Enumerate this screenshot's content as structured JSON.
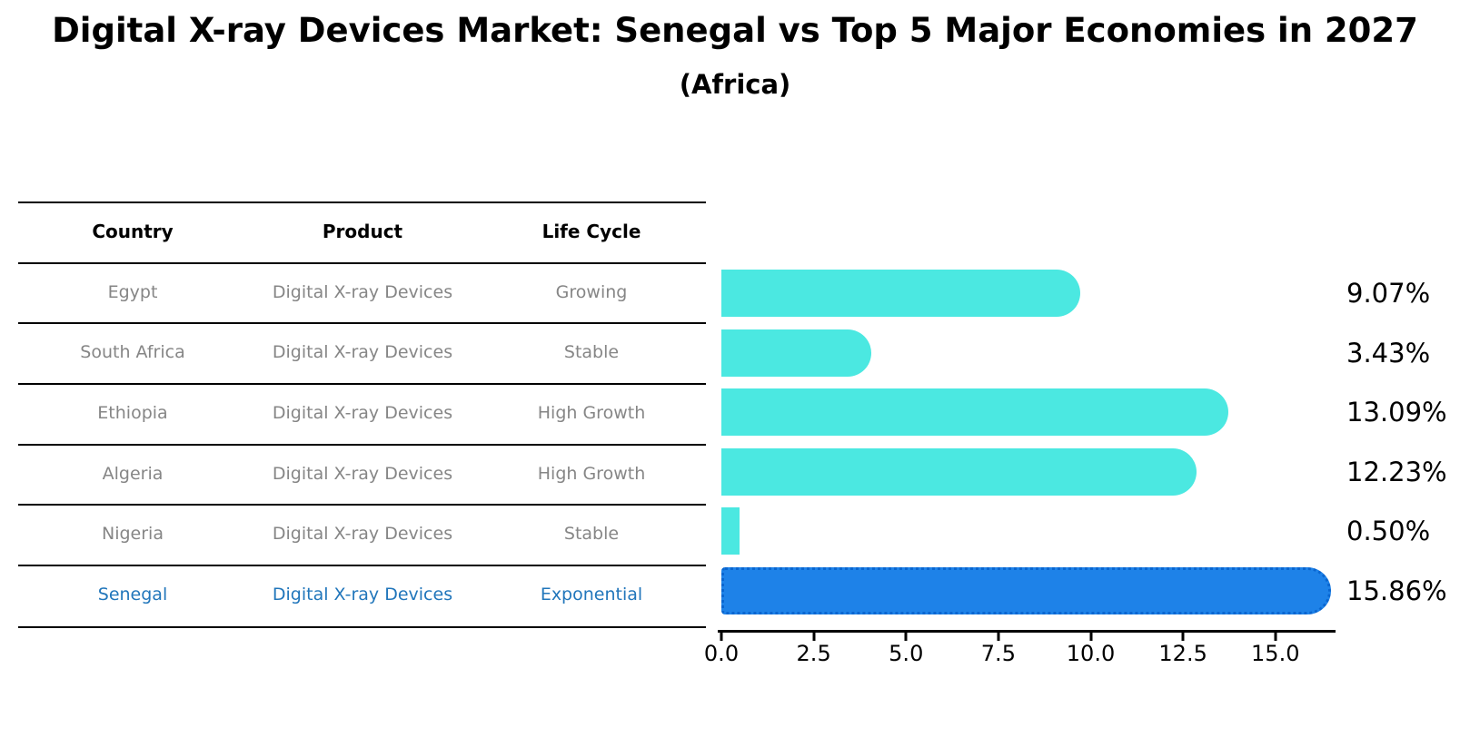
{
  "title": "Digital X-ray Devices Market: Senegal vs Top 5 Major Economies in 2027",
  "subtitle": "(Africa)",
  "table": {
    "headers": [
      "Country",
      "Product",
      "Life Cycle"
    ],
    "rows": [
      {
        "country": "Egypt",
        "product": "Digital X-ray Devices",
        "life_cycle": "Growing",
        "highlight": false
      },
      {
        "country": "South Africa",
        "product": "Digital X-ray Devices",
        "life_cycle": "Stable",
        "highlight": false
      },
      {
        "country": "Ethiopia",
        "product": "Digital X-ray Devices",
        "life_cycle": "High Growth",
        "highlight": false
      },
      {
        "country": "Algeria",
        "product": "Digital X-ray Devices",
        "life_cycle": "High Growth",
        "highlight": false
      },
      {
        "country": "Nigeria",
        "product": "Digital X-ray Devices",
        "life_cycle": "Stable",
        "highlight": false
      },
      {
        "country": "Senegal",
        "product": "Digital X-ray Devices",
        "life_cycle": "Exponential",
        "highlight": true
      }
    ]
  },
  "chart_data": {
    "type": "bar",
    "orientation": "horizontal",
    "title": "Digital X-ray Devices Market: Senegal vs Top 5 Major Economies in 2027",
    "subtitle": "(Africa)",
    "categories": [
      "Egypt",
      "South Africa",
      "Ethiopia",
      "Algeria",
      "Nigeria",
      "Senegal"
    ],
    "values": [
      9.07,
      3.43,
      13.09,
      12.23,
      0.5,
      15.86
    ],
    "value_labels": [
      "9.07%",
      "3.43%",
      "13.09%",
      "12.23%",
      "0.50%",
      "15.86%"
    ],
    "highlight_index": 5,
    "xlabel": "",
    "ylabel": "",
    "xlim": [
      0.0,
      16.65
    ],
    "x_ticks": [
      0.0,
      2.5,
      5.0,
      7.5,
      10.0,
      12.5,
      15.0
    ],
    "x_tick_labels": [
      "0.0",
      "2.5",
      "5.0",
      "7.5",
      "10.0",
      "12.5",
      "15.0"
    ],
    "grid": false,
    "legend": false
  },
  "colors": {
    "bar_fill": "#4BE8E1",
    "highlight_fill": "#1E82E8",
    "highlight_border": "#0A66D0",
    "highlight_text": "#2176BB",
    "row_text": "#868686",
    "axis": "#000000",
    "background": "#FFFFFF"
  }
}
